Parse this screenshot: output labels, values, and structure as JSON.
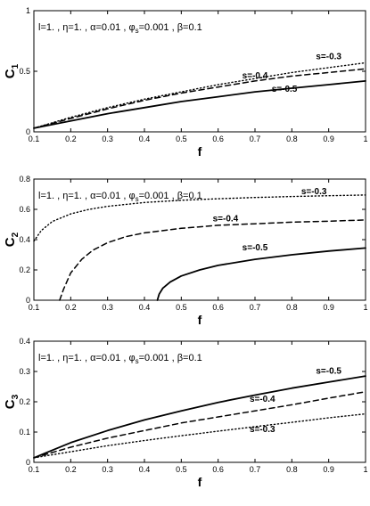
{
  "chart_data": [
    {
      "type": "line",
      "xlabel": "f",
      "ylabel": "C",
      "ylabel_sub": "1",
      "xlim": [
        0.1,
        1
      ],
      "ylim": [
        0,
        1
      ],
      "xticks": [
        "0.1",
        "0.2",
        "0.3",
        "0.4",
        "0.5",
        "0.6",
        "0.7",
        "0.8",
        "0.9",
        "1"
      ],
      "yticks": [
        "0",
        "0.5",
        "1"
      ],
      "annotation": "l=1. , η=1. , α=0.01 , φ",
      "annotation_sub": "s",
      "annotation_tail": "=0.001 , β=0.1",
      "series": [
        {
          "name": "s=-0.3",
          "style": "dotted",
          "x": [
            0.1,
            0.2,
            0.3,
            0.4,
            0.5,
            0.6,
            0.7,
            0.8,
            0.9,
            1.0
          ],
          "y": [
            0.03,
            0.12,
            0.2,
            0.27,
            0.33,
            0.39,
            0.44,
            0.49,
            0.53,
            0.57
          ]
        },
        {
          "name": "s=-0.4",
          "style": "dashed",
          "x": [
            0.1,
            0.2,
            0.3,
            0.4,
            0.5,
            0.6,
            0.7,
            0.8,
            0.9,
            1.0
          ],
          "y": [
            0.03,
            0.11,
            0.19,
            0.26,
            0.32,
            0.37,
            0.42,
            0.46,
            0.49,
            0.52
          ]
        },
        {
          "name": "s=-0.5",
          "style": "solid",
          "x": [
            0.1,
            0.2,
            0.3,
            0.4,
            0.5,
            0.6,
            0.7,
            0.8,
            0.9,
            1.0
          ],
          "y": [
            0.03,
            0.09,
            0.15,
            0.2,
            0.25,
            0.29,
            0.33,
            0.36,
            0.39,
            0.42
          ]
        }
      ],
      "labels": [
        {
          "text": "s=-0.3",
          "x": 0.9,
          "y": 0.6
        },
        {
          "text": "s=-0.4",
          "x": 0.7,
          "y": 0.44
        },
        {
          "text": "s=-0.5",
          "x": 0.78,
          "y": 0.33
        }
      ]
    },
    {
      "type": "line",
      "xlabel": "f",
      "ylabel": "C",
      "ylabel_sub": "2",
      "xlim": [
        0.1,
        1
      ],
      "ylim": [
        0,
        0.8
      ],
      "xticks": [
        "0.1",
        "0.2",
        "0.3",
        "0.4",
        "0.5",
        "0.6",
        "0.7",
        "0.8",
        "0.9",
        "1"
      ],
      "yticks": [
        "0",
        "0.2",
        "0.4",
        "0.6",
        "0.8"
      ],
      "annotation": "l=1. , η=1. , α=0.01 , φ",
      "annotation_sub": "s",
      "annotation_tail": "=0.001 , β=0.1",
      "series": [
        {
          "name": "s=-0.3",
          "style": "dotted",
          "x": [
            0.1,
            0.12,
            0.15,
            0.2,
            0.25,
            0.3,
            0.4,
            0.5,
            0.6,
            0.7,
            0.8,
            0.9,
            1.0
          ],
          "y": [
            0.39,
            0.46,
            0.52,
            0.57,
            0.6,
            0.62,
            0.645,
            0.66,
            0.67,
            0.678,
            0.685,
            0.69,
            0.695
          ]
        },
        {
          "name": "s=-0.4",
          "style": "dashed",
          "x": [
            0.17,
            0.18,
            0.2,
            0.23,
            0.26,
            0.3,
            0.35,
            0.4,
            0.5,
            0.6,
            0.7,
            0.8,
            0.9,
            1.0
          ],
          "y": [
            0.0,
            0.07,
            0.18,
            0.27,
            0.33,
            0.38,
            0.42,
            0.445,
            0.475,
            0.495,
            0.505,
            0.515,
            0.522,
            0.53
          ]
        },
        {
          "name": "s=-0.5",
          "style": "solid",
          "x": [
            0.435,
            0.44,
            0.45,
            0.47,
            0.5,
            0.55,
            0.6,
            0.7,
            0.8,
            0.9,
            1.0
          ],
          "y": [
            0.0,
            0.04,
            0.08,
            0.12,
            0.16,
            0.2,
            0.23,
            0.27,
            0.3,
            0.325,
            0.345
          ]
        }
      ],
      "labels": [
        {
          "text": "s=-0.3",
          "x": 0.86,
          "y": 0.7
        },
        {
          "text": "s=-0.4",
          "x": 0.62,
          "y": 0.52
        },
        {
          "text": "s=-0.5",
          "x": 0.7,
          "y": 0.33
        }
      ]
    },
    {
      "type": "line",
      "xlabel": "f",
      "ylabel": "C",
      "ylabel_sub": "3",
      "xlim": [
        0.1,
        1
      ],
      "ylim": [
        0,
        0.4
      ],
      "xticks": [
        "0.1",
        "0.2",
        "0.3",
        "0.4",
        "0.5",
        "0.6",
        "0.7",
        "0.8",
        "0.9",
        "1"
      ],
      "yticks": [
        "0",
        "0.1",
        "0.2",
        "0.3",
        "0.4"
      ],
      "annotation": "l=1. , η=1. , α=0.01 , φ",
      "annotation_sub": "s",
      "annotation_tail": "=0.001 , β=0.1",
      "series": [
        {
          "name": "s=-0.5",
          "style": "solid",
          "x": [
            0.1,
            0.2,
            0.3,
            0.4,
            0.5,
            0.6,
            0.7,
            0.8,
            0.9,
            1.0
          ],
          "y": [
            0.015,
            0.065,
            0.105,
            0.14,
            0.17,
            0.198,
            0.222,
            0.245,
            0.265,
            0.285
          ]
        },
        {
          "name": "s=-0.4",
          "style": "dashed",
          "x": [
            0.1,
            0.2,
            0.3,
            0.4,
            0.5,
            0.6,
            0.7,
            0.8,
            0.9,
            1.0
          ],
          "y": [
            0.015,
            0.05,
            0.08,
            0.105,
            0.13,
            0.15,
            0.17,
            0.19,
            0.212,
            0.233
          ]
        },
        {
          "name": "s=-0.3",
          "style": "dotted",
          "x": [
            0.1,
            0.2,
            0.3,
            0.4,
            0.5,
            0.6,
            0.7,
            0.8,
            0.9,
            1.0
          ],
          "y": [
            0.015,
            0.035,
            0.055,
            0.072,
            0.088,
            0.103,
            0.118,
            0.132,
            0.147,
            0.16
          ]
        }
      ],
      "labels": [
        {
          "text": "s=-0.5",
          "x": 0.9,
          "y": 0.293
        },
        {
          "text": "s=-0.4",
          "x": 0.72,
          "y": 0.2
        },
        {
          "text": "s=-0.3",
          "x": 0.72,
          "y": 0.1
        }
      ]
    }
  ]
}
